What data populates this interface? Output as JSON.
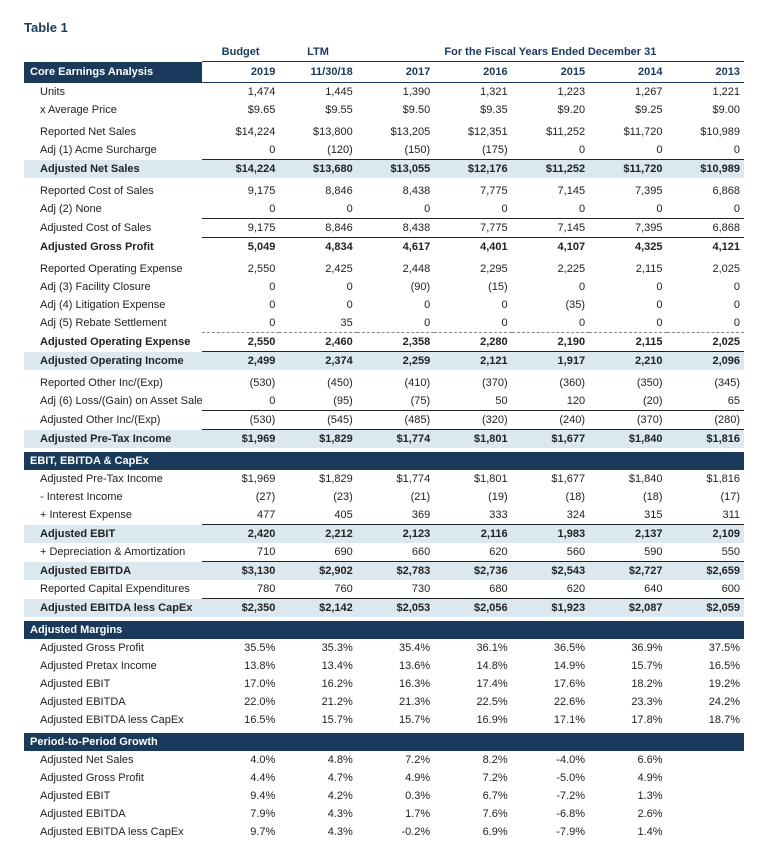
{
  "title": "Table 1",
  "columns": {
    "budget_label": "Budget",
    "ltm_label": "LTM",
    "fy_label": "For the Fiscal Years Ended December 31",
    "budget_year": "2019",
    "ltm_date": "11/30/18",
    "years": [
      "2017",
      "2016",
      "2015",
      "2014",
      "2013"
    ]
  },
  "sections": {
    "core": "Core Earnings Analysis",
    "ebit": "EBIT, EBITDA & CapEx",
    "margins": "Adjusted Margins",
    "growth": "Period-to-Period Growth"
  },
  "rows": {
    "units": {
      "l": "Units",
      "v": [
        "1,474",
        "1,445",
        "1,390",
        "1,321",
        "1,223",
        "1,267",
        "1,221"
      ]
    },
    "avgprice": {
      "l": "x Average Price",
      "v": [
        "$9.65",
        "$9.55",
        "$9.50",
        "$9.35",
        "$9.20",
        "$9.25",
        "$9.00"
      ]
    },
    "repnet": {
      "l": "Reported Net Sales",
      "v": [
        "$14,224",
        "$13,800",
        "$13,205",
        "$12,351",
        "$11,252",
        "$11,720",
        "$10,989"
      ]
    },
    "adj1": {
      "l": "Adj (1) Acme Surcharge",
      "v": [
        "0",
        "(120)",
        "(150)",
        "(175)",
        "0",
        "0",
        "0"
      ]
    },
    "adjnet": {
      "l": "Adjusted Net Sales",
      "v": [
        "$14,224",
        "$13,680",
        "$13,055",
        "$12,176",
        "$11,252",
        "$11,720",
        "$10,989"
      ]
    },
    "repcost": {
      "l": "Reported Cost of Sales",
      "v": [
        "9,175",
        "8,846",
        "8,438",
        "7,775",
        "7,145",
        "7,395",
        "6,868"
      ]
    },
    "adj2": {
      "l": "Adj (2) None",
      "v": [
        "0",
        "0",
        "0",
        "0",
        "0",
        "0",
        "0"
      ]
    },
    "adjcost": {
      "l": "Adjusted Cost of Sales",
      "v": [
        "9,175",
        "8,846",
        "8,438",
        "7,775",
        "7,145",
        "7,395",
        "6,868"
      ]
    },
    "adjgp": {
      "l": "Adjusted Gross Profit",
      "v": [
        "5,049",
        "4,834",
        "4,617",
        "4,401",
        "4,107",
        "4,325",
        "4,121"
      ]
    },
    "repopex": {
      "l": "Reported Operating Expense",
      "v": [
        "2,550",
        "2,425",
        "2,448",
        "2,295",
        "2,225",
        "2,115",
        "2,025"
      ]
    },
    "adj3": {
      "l": "Adj (3) Facility Closure",
      "v": [
        "0",
        "0",
        "(90)",
        "(15)",
        "0",
        "0",
        "0"
      ]
    },
    "adj4": {
      "l": "Adj (4) Litigation Expense",
      "v": [
        "0",
        "0",
        "0",
        "0",
        "(35)",
        "0",
        "0"
      ]
    },
    "adj5": {
      "l": "Adj (5) Rebate Settlement",
      "v": [
        "0",
        "35",
        "0",
        "0",
        "0",
        "0",
        "0"
      ]
    },
    "adjopex": {
      "l": "Adjusted Operating Expense",
      "v": [
        "2,550",
        "2,460",
        "2,358",
        "2,280",
        "2,190",
        "2,115",
        "2,025"
      ]
    },
    "adjopinc": {
      "l": "Adjusted Operating Income",
      "v": [
        "2,499",
        "2,374",
        "2,259",
        "2,121",
        "1,917",
        "2,210",
        "2,096"
      ]
    },
    "repoth": {
      "l": "Reported Other Inc/(Exp)",
      "v": [
        "(530)",
        "(450)",
        "(410)",
        "(370)",
        "(360)",
        "(350)",
        "(345)"
      ]
    },
    "adj6": {
      "l": "Adj (6) Loss/(Gain) on Asset Sale",
      "v": [
        "0",
        "(95)",
        "(75)",
        "50",
        "120",
        "(20)",
        "65"
      ]
    },
    "adjoth": {
      "l": "Adjusted Other Inc/(Exp)",
      "v": [
        "(530)",
        "(545)",
        "(485)",
        "(320)",
        "(240)",
        "(370)",
        "(280)"
      ]
    },
    "adjpti": {
      "l": "Adjusted Pre-Tax Income",
      "v": [
        "$1,969",
        "$1,829",
        "$1,774",
        "$1,801",
        "$1,677",
        "$1,840",
        "$1,816"
      ]
    },
    "ebit_pti": {
      "l": "Adjusted Pre-Tax Income",
      "v": [
        "$1,969",
        "$1,829",
        "$1,774",
        "$1,801",
        "$1,677",
        "$1,840",
        "$1,816"
      ]
    },
    "intinc": {
      "l": "- Interest Income",
      "v": [
        "(27)",
        "(23)",
        "(21)",
        "(19)",
        "(18)",
        "(18)",
        "(17)"
      ]
    },
    "intexp": {
      "l": "+ Interest Expense",
      "v": [
        "477",
        "405",
        "369",
        "333",
        "324",
        "315",
        "311"
      ]
    },
    "adjebit": {
      "l": "Adjusted EBIT",
      "v": [
        "2,420",
        "2,212",
        "2,123",
        "2,116",
        "1,983",
        "2,137",
        "2,109"
      ]
    },
    "da": {
      "l": "+ Depreciation & Amortization",
      "v": [
        "710",
        "690",
        "660",
        "620",
        "560",
        "590",
        "550"
      ]
    },
    "adjebitda": {
      "l": "Adjusted EBITDA",
      "v": [
        "$3,130",
        "$2,902",
        "$2,783",
        "$2,736",
        "$2,543",
        "$2,727",
        "$2,659"
      ]
    },
    "capex": {
      "l": "Reported Capital Expenditures",
      "v": [
        "780",
        "760",
        "730",
        "680",
        "620",
        "640",
        "600"
      ]
    },
    "ebitdacapex": {
      "l": "Adjusted EBITDA less CapEx",
      "v": [
        "$2,350",
        "$2,142",
        "$2,053",
        "$2,056",
        "$1,923",
        "$2,087",
        "$2,059"
      ]
    },
    "m_gp": {
      "l": "Adjusted Gross Profit",
      "v": [
        "35.5%",
        "35.3%",
        "35.4%",
        "36.1%",
        "36.5%",
        "36.9%",
        "37.5%"
      ]
    },
    "m_pti": {
      "l": "Adjusted Pretax Income",
      "v": [
        "13.8%",
        "13.4%",
        "13.6%",
        "14.8%",
        "14.9%",
        "15.7%",
        "16.5%"
      ]
    },
    "m_ebit": {
      "l": "Adjusted EBIT",
      "v": [
        "17.0%",
        "16.2%",
        "16.3%",
        "17.4%",
        "17.6%",
        "18.2%",
        "19.2%"
      ]
    },
    "m_ebitda": {
      "l": "Adjusted EBITDA",
      "v": [
        "22.0%",
        "21.2%",
        "21.3%",
        "22.5%",
        "22.6%",
        "23.3%",
        "24.2%"
      ]
    },
    "m_elc": {
      "l": "Adjusted EBITDA less CapEx",
      "v": [
        "16.5%",
        "15.7%",
        "15.7%",
        "16.9%",
        "17.1%",
        "17.8%",
        "18.7%"
      ]
    },
    "g_net": {
      "l": "Adjusted Net Sales",
      "v": [
        "4.0%",
        "4.8%",
        "7.2%",
        "8.2%",
        "-4.0%",
        "6.6%",
        ""
      ]
    },
    "g_gp": {
      "l": "Adjusted Gross Profit",
      "v": [
        "4.4%",
        "4.7%",
        "4.9%",
        "7.2%",
        "-5.0%",
        "4.9%",
        ""
      ]
    },
    "g_ebit": {
      "l": "Adjusted EBIT",
      "v": [
        "9.4%",
        "4.2%",
        "0.3%",
        "6.7%",
        "-7.2%",
        "1.3%",
        ""
      ]
    },
    "g_ebitda": {
      "l": "Adjusted EBITDA",
      "v": [
        "7.9%",
        "4.3%",
        "1.7%",
        "7.6%",
        "-6.8%",
        "2.6%",
        ""
      ]
    },
    "g_elc": {
      "l": "Adjusted EBITDA less CapEx",
      "v": [
        "9.7%",
        "4.3%",
        "-0.2%",
        "6.9%",
        "-7.9%",
        "1.4%",
        ""
      ]
    }
  }
}
